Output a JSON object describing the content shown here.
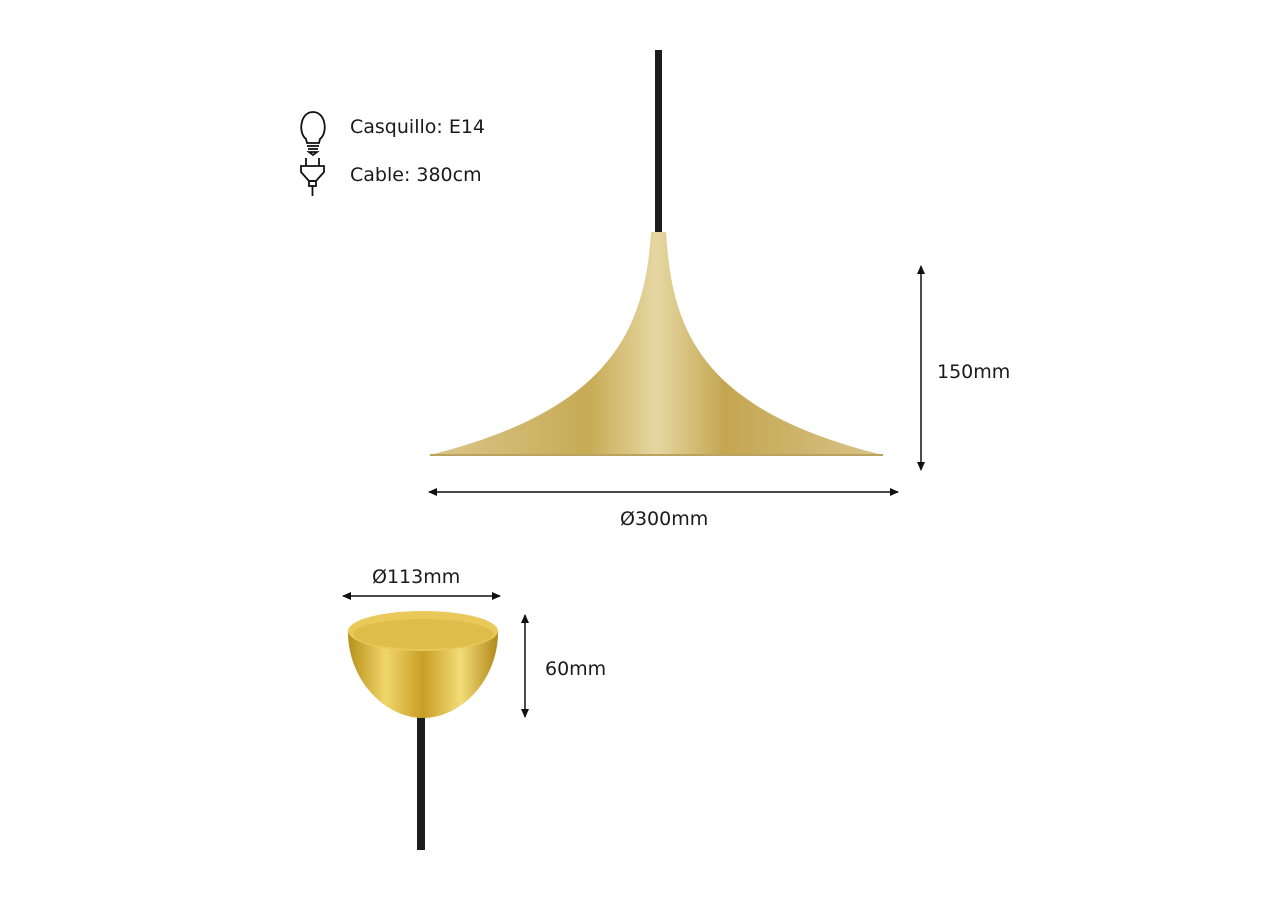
{
  "specs": [
    {
      "icon": "light-bulb-icon",
      "label": "Casquillo: E14"
    },
    {
      "icon": "plug-icon",
      "label": "Cable: 380cm"
    }
  ],
  "dimensions": {
    "shade_height": "150mm",
    "shade_diameter": "Ø300mm",
    "canopy_diameter": "Ø113mm",
    "canopy_height": "60mm"
  },
  "colors": {
    "brass": "#c9a842",
    "cable": "#1c1c1c"
  }
}
